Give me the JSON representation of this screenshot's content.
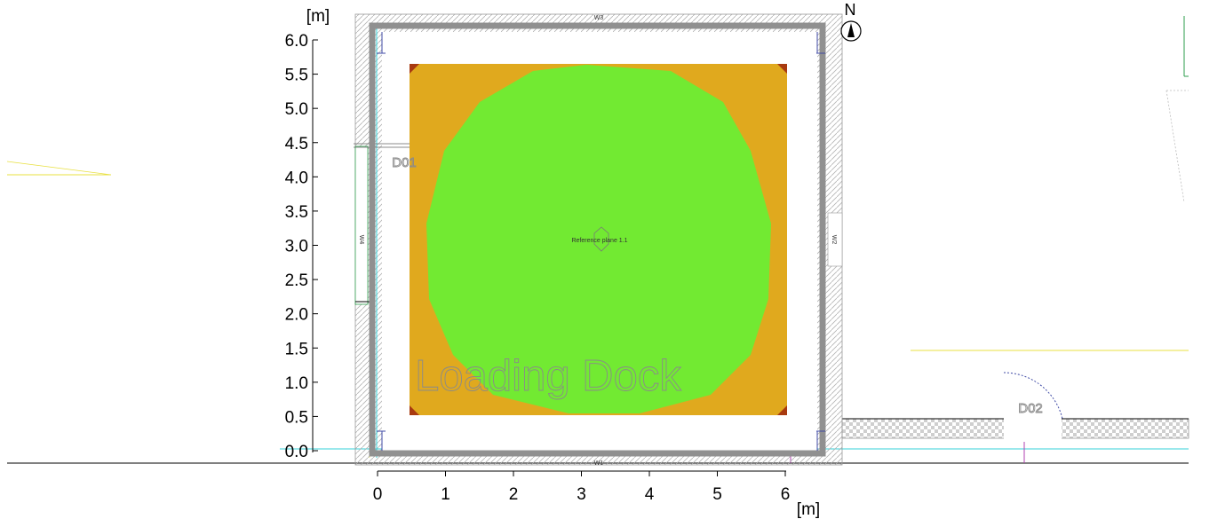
{
  "plan": {
    "y_unit": "[m]",
    "x_unit": "[m]",
    "y_ticks": [
      "6.0",
      "5.5",
      "5.0",
      "4.5",
      "4.0",
      "3.5",
      "3.0",
      "2.5",
      "2.0",
      "1.5",
      "1.0",
      "0.5",
      "0.0"
    ],
    "x_ticks": [
      "0",
      "1",
      "2",
      "3",
      "4",
      "5",
      "6"
    ],
    "north_label": "N",
    "reference_label": "Reference plane 1.1",
    "room_label": "Loading Dock",
    "door_labels": [
      "D01",
      "D02"
    ],
    "wall_labels": [
      "W3",
      "W2",
      "W4",
      "W1"
    ],
    "colors": {
      "outer_zone": "#E0A91E",
      "inner_zone": "#72EA32",
      "corner_marks": "#A83A10",
      "frame": "#909090",
      "wall_hatch": "#BBBBBB",
      "cyan_line": "#35D0D8",
      "yellow_line": "#E8E040",
      "green_line": "#2E9E4C"
    }
  }
}
